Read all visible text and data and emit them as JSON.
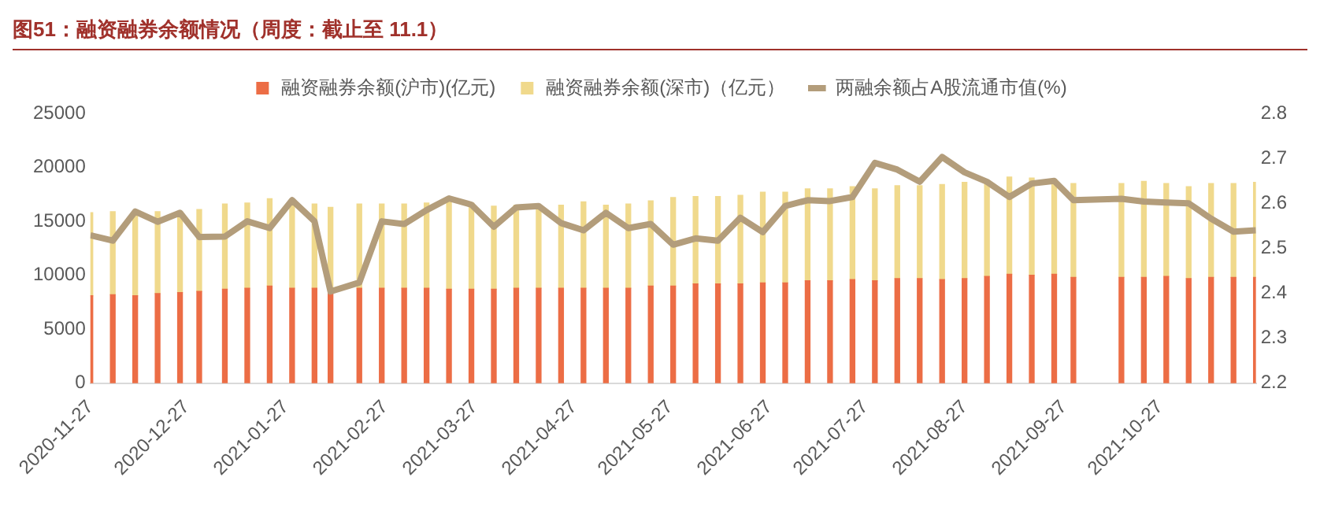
{
  "chart_data": {
    "type": "bar",
    "title": "图51：融资融券余额情况（周度：截止至 11.1）",
    "stacked": true,
    "legend": "top",
    "marker": "none",
    "x": [
      "2020-11-27",
      "2020-12-04",
      "2020-12-11",
      "2020-12-18",
      "2020-12-25",
      "2020-12-31",
      "2021-01-08",
      "2021-01-15",
      "2021-01-22",
      "2021-01-29",
      "2021-02-05",
      "2021-02-10",
      "2021-02-19",
      "2021-02-26",
      "2021-03-05",
      "2021-03-12",
      "2021-03-19",
      "2021-03-26",
      "2021-04-02",
      "2021-04-09",
      "2021-04-16",
      "2021-04-23",
      "2021-04-30",
      "2021-05-07",
      "2021-05-14",
      "2021-05-21",
      "2021-05-28",
      "2021-06-04",
      "2021-06-11",
      "2021-06-18",
      "2021-06-25",
      "2021-07-02",
      "2021-07-09",
      "2021-07-16",
      "2021-07-23",
      "2021-07-30",
      "2021-08-06",
      "2021-08-13",
      "2021-08-20",
      "2021-08-27",
      "2021-09-03",
      "2021-09-10",
      "2021-09-17",
      "2021-09-24",
      "2021-09-30",
      "2021-10-15",
      "2021-10-22",
      "2021-10-29",
      "2021-11-05",
      "2021-11-12",
      "2021-11-19",
      "2021-11-26"
    ],
    "series": [
      {
        "name": "融资融券余额(沪市)(亿元)",
        "color": "#ec6d45",
        "values": [
          8100,
          8200,
          8100,
          8300,
          8400,
          8500,
          8700,
          8800,
          9000,
          8800,
          8800,
          8600,
          8800,
          8800,
          8800,
          8800,
          8700,
          8700,
          8700,
          8800,
          8800,
          8800,
          8800,
          8800,
          8800,
          9000,
          9000,
          9200,
          9200,
          9200,
          9300,
          9300,
          9500,
          9500,
          9600,
          9500,
          9700,
          9700,
          9600,
          9700,
          9900,
          10100,
          10000,
          10100,
          9800,
          9800,
          9800,
          9900,
          9700,
          9800,
          9800,
          9800
        ]
      },
      {
        "name": "融资融券余额(深市)（亿元）",
        "color": "#f0d98c",
        "values": [
          7700,
          7700,
          7700,
          7600,
          7500,
          7600,
          7900,
          7900,
          8100,
          7900,
          7800,
          7700,
          7800,
          7800,
          7800,
          7900,
          8100,
          8000,
          7700,
          7700,
          7500,
          7700,
          8000,
          7700,
          7800,
          7900,
          8200,
          8100,
          8100,
          8200,
          8400,
          8400,
          8500,
          8500,
          8600,
          8500,
          8600,
          8600,
          8800,
          8900,
          8600,
          9000,
          9000,
          8800,
          8700,
          8700,
          8900,
          8600,
          8500,
          8700,
          8700,
          8800
        ]
      },
      {
        "name": "两融余额占A股流通市值(%)",
        "type": "line",
        "axis": "y2",
        "color": "#b39d7b",
        "values": [
          2.529,
          2.517,
          2.582,
          2.559,
          2.579,
          2.525,
          2.526,
          2.56,
          2.545,
          2.607,
          2.56,
          2.404,
          2.424,
          2.56,
          2.554,
          2.585,
          2.611,
          2.597,
          2.548,
          2.591,
          2.594,
          2.556,
          2.54,
          2.579,
          2.545,
          2.554,
          2.508,
          2.522,
          2.517,
          2.568,
          2.536,
          2.594,
          2.607,
          2.605,
          2.614,
          2.69,
          2.675,
          2.648,
          2.703,
          2.669,
          2.648,
          2.614,
          2.644,
          2.65,
          2.607,
          2.61,
          2.604,
          2.602,
          2.6,
          2.566,
          2.537,
          2.54
        ]
      }
    ],
    "xlim": [
      "2020-11-27",
      "2021-11-26"
    ],
    "xticks": [
      "2020-11-27",
      "2020-12-27",
      "2021-01-27",
      "2021-02-27",
      "2021-03-27",
      "2021-04-27",
      "2021-05-27",
      "2021-06-27",
      "2021-07-27",
      "2021-08-27",
      "2021-09-27",
      "2021-10-27"
    ],
    "ylim": [
      0,
      25000
    ],
    "yticks": [
      0,
      5000,
      10000,
      15000,
      20000,
      25000
    ],
    "y2lim": [
      2.2,
      2.8
    ],
    "y2ticks": [
      2.2,
      2.3,
      2.4,
      2.5,
      2.6,
      2.7,
      2.8
    ]
  }
}
